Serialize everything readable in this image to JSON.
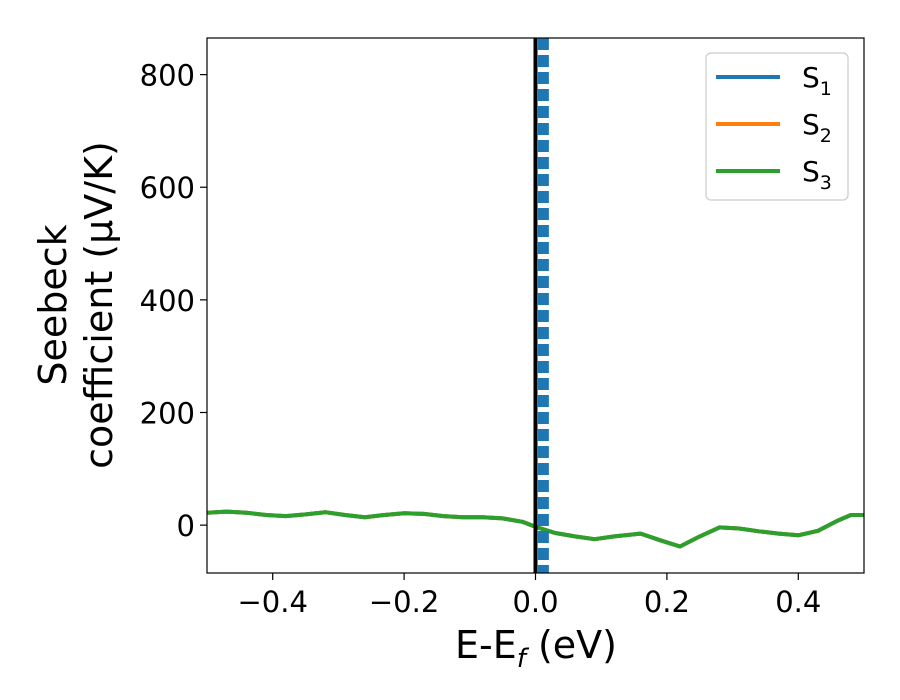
{
  "chart_data": {
    "type": "line",
    "xlabel": "E-E",
    "xlabel_sub": "f",
    "xlabel_unit": " (eV)",
    "ylabel_line1": "Seebeck",
    "ylabel_line2": "coefficient  (μV/K)",
    "xlim": [
      -0.5,
      0.5
    ],
    "ylim": [
      -85,
      865
    ],
    "x_ticks": [
      -0.4,
      -0.2,
      0.0,
      0.2,
      0.4
    ],
    "x_tick_labels": [
      "−0.4",
      "−0.2",
      "0.0",
      "0.2",
      "0.4"
    ],
    "y_ticks": [
      0,
      200,
      400,
      600,
      800
    ],
    "y_tick_labels": [
      "0",
      "200",
      "400",
      "600",
      "800"
    ],
    "grid": false,
    "legend_position": "top-right",
    "vertical_lines": [
      {
        "x": 0.0,
        "color": "#000000",
        "style": "solid"
      },
      {
        "x": 0.012,
        "color": "#1f77b4",
        "style": "dashed"
      }
    ],
    "series": [
      {
        "name": "S",
        "sub": "1",
        "color": "#1f77b4",
        "x": [
          -0.5,
          -0.47,
          -0.44,
          -0.41,
          -0.38,
          -0.35,
          -0.32,
          -0.29,
          -0.26,
          -0.23,
          -0.2,
          -0.17,
          -0.14,
          -0.11,
          -0.08,
          -0.05,
          -0.02,
          0.0,
          0.03,
          0.06,
          0.09,
          0.12,
          0.16,
          0.19,
          0.22,
          0.25,
          0.28,
          0.31,
          0.34,
          0.37,
          0.4,
          0.43,
          0.46,
          0.48,
          0.5
        ],
        "y": [
          22,
          24,
          22,
          18,
          16,
          19,
          23,
          18,
          14,
          18,
          21,
          20,
          16,
          14,
          14,
          12,
          6,
          -3,
          -14,
          -20,
          -25,
          -20,
          -15,
          -27,
          -38,
          -20,
          -4,
          -6,
          -11,
          -15,
          -18,
          -10,
          8,
          18,
          18
        ]
      },
      {
        "name": "S",
        "sub": "2",
        "color": "#ff7f0e",
        "x": [
          -0.5,
          -0.47,
          -0.44,
          -0.41,
          -0.38,
          -0.35,
          -0.32,
          -0.29,
          -0.26,
          -0.23,
          -0.2,
          -0.17,
          -0.14,
          -0.11,
          -0.08,
          -0.05,
          -0.02,
          0.0,
          0.03,
          0.06,
          0.09,
          0.12,
          0.16,
          0.19,
          0.22,
          0.25,
          0.28,
          0.31,
          0.34,
          0.37,
          0.4,
          0.43,
          0.46,
          0.48,
          0.5
        ],
        "y": [
          22,
          24,
          22,
          18,
          16,
          19,
          23,
          18,
          14,
          18,
          21,
          20,
          16,
          14,
          14,
          12,
          6,
          -3,
          -14,
          -20,
          -25,
          -20,
          -15,
          -27,
          -38,
          -20,
          -4,
          -6,
          -11,
          -15,
          -18,
          -10,
          8,
          18,
          18
        ]
      },
      {
        "name": "S",
        "sub": "3",
        "color": "#2ca02c",
        "x": [
          -0.5,
          -0.47,
          -0.44,
          -0.41,
          -0.38,
          -0.35,
          -0.32,
          -0.29,
          -0.26,
          -0.23,
          -0.2,
          -0.17,
          -0.14,
          -0.11,
          -0.08,
          -0.05,
          -0.02,
          0.0,
          0.03,
          0.06,
          0.09,
          0.12,
          0.16,
          0.19,
          0.22,
          0.25,
          0.28,
          0.31,
          0.34,
          0.37,
          0.4,
          0.43,
          0.46,
          0.48,
          0.5
        ],
        "y": [
          22,
          24,
          22,
          18,
          16,
          19,
          23,
          18,
          14,
          18,
          21,
          20,
          16,
          14,
          14,
          12,
          6,
          -3,
          -14,
          -20,
          -25,
          -20,
          -15,
          -27,
          -38,
          -20,
          -4,
          -6,
          -11,
          -15,
          -18,
          -10,
          8,
          18,
          18
        ]
      }
    ]
  }
}
